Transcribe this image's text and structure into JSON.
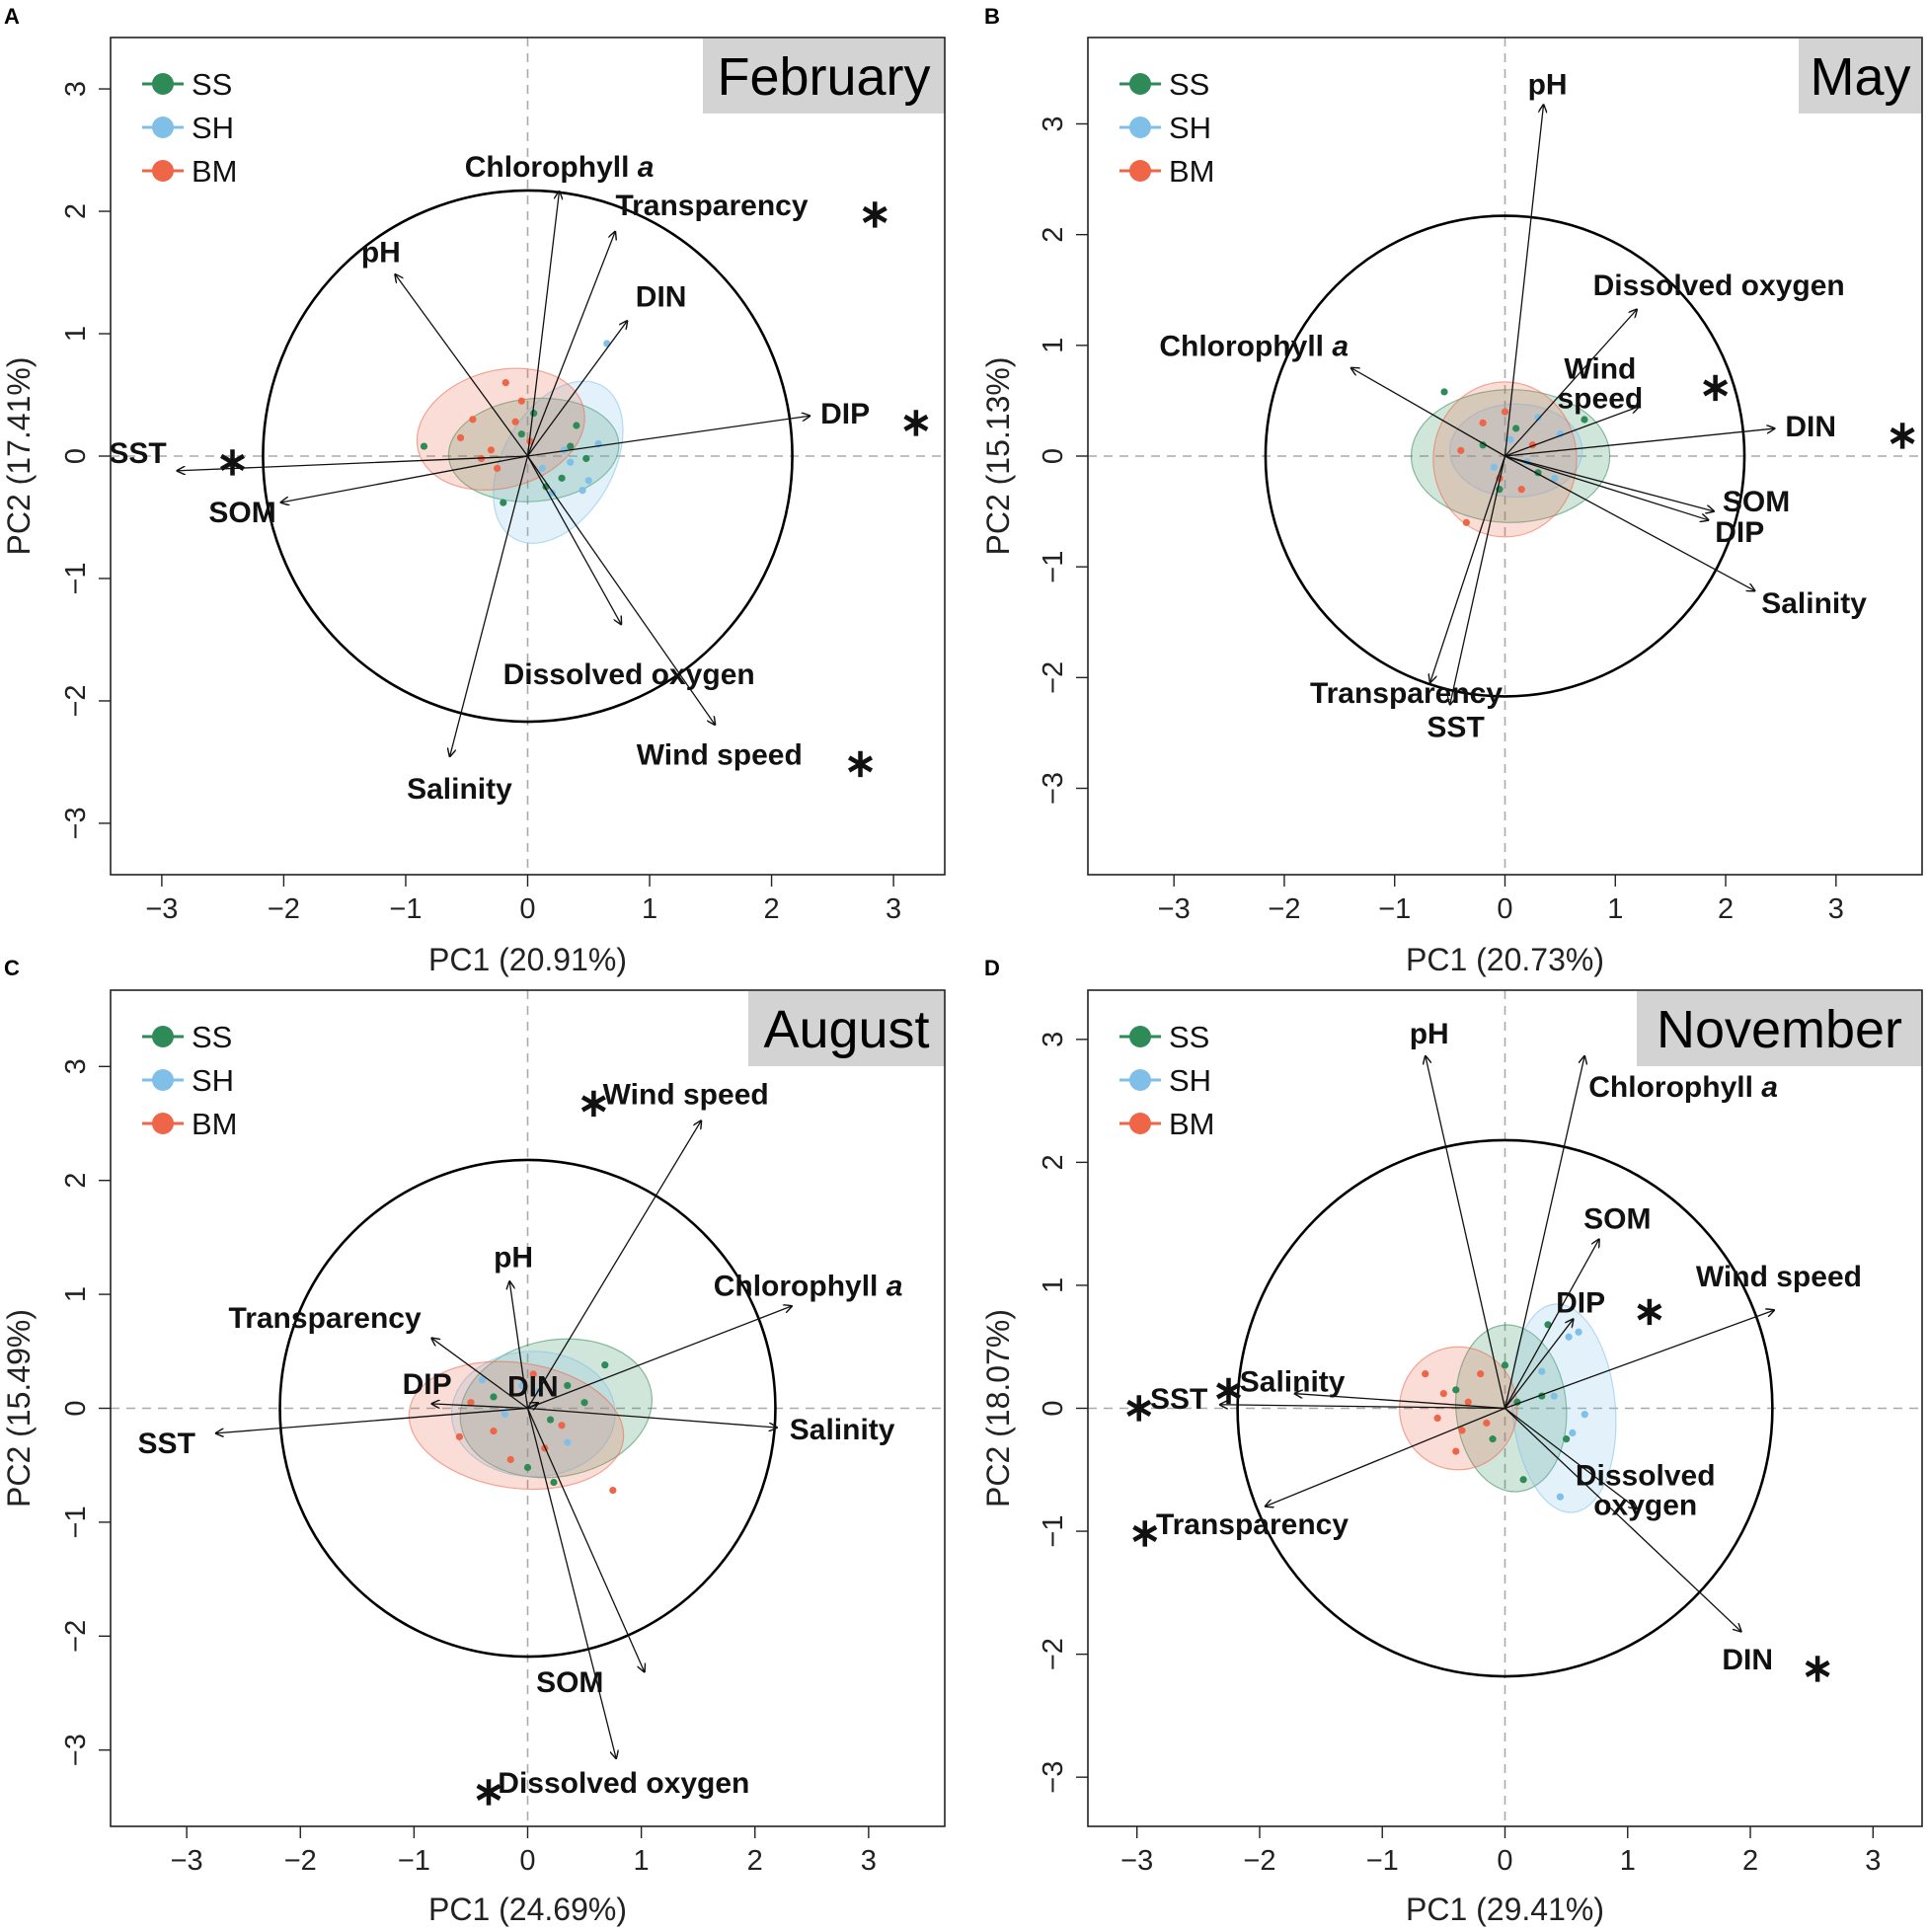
{
  "figure": {
    "legend_groups": [
      {
        "name": "SS",
        "color": "#2e8b57"
      },
      {
        "name": "SH",
        "color": "#7fbfe8"
      },
      {
        "name": "BM",
        "color": "#ef6548"
      }
    ],
    "ylabel_prefix": "PC2",
    "xlabel_prefix": "PC1"
  },
  "chart_data": [
    {
      "type": "scatter",
      "panel": "A",
      "title": "February",
      "xlabel": "PC1 (20.91%)",
      "ylabel": "PC2 (17.41%)",
      "xlim": [
        -3.42,
        3.42
      ],
      "ylim": [
        -3.42,
        3.42
      ],
      "xticks": [
        "−3",
        "−2",
        "−1",
        "0",
        "1",
        "2",
        "3"
      ],
      "yticks": [
        "−3",
        "−2",
        "−1",
        "0",
        "1",
        "2",
        "3"
      ],
      "legend": [
        "SS",
        "SH",
        "BM"
      ],
      "circle_radius": 2.17,
      "vectors": [
        {
          "label": "Chlorophyll a",
          "x": 0.26,
          "y": 2.17,
          "sig": false
        },
        {
          "label": "Transparency",
          "x": 0.72,
          "y": 1.84,
          "sig": true
        },
        {
          "label": "pH",
          "x": -1.09,
          "y": 1.49,
          "sig": false
        },
        {
          "label": "DIN",
          "x": 0.82,
          "y": 1.11,
          "sig": false
        },
        {
          "label": "DIP",
          "x": 2.32,
          "y": 0.33,
          "sig": true
        },
        {
          "label": "SST",
          "x": -2.88,
          "y": -0.12,
          "sig": true
        },
        {
          "label": "SOM",
          "x": -2.03,
          "y": -0.38,
          "sig": false
        },
        {
          "label": "Dissolved oxygen",
          "x": 0.77,
          "y": -1.38,
          "sig": false
        },
        {
          "label": "Wind speed",
          "x": 1.54,
          "y": -2.2,
          "sig": true
        },
        {
          "label": "Salinity",
          "x": -0.64,
          "y": -2.46,
          "sig": false
        }
      ],
      "ellipses": [
        {
          "group": "SS",
          "cx": 0.05,
          "cy": 0.05,
          "rx": 0.7,
          "ry": 0.42,
          "angle": 5
        },
        {
          "group": "SH",
          "cx": 0.25,
          "cy": -0.05,
          "rx": 0.45,
          "ry": 0.72,
          "angle": -30
        },
        {
          "group": "BM",
          "cx": -0.22,
          "cy": 0.22,
          "rx": 0.7,
          "ry": 0.48,
          "angle": 15
        }
      ],
      "points": [
        {
          "group": "SS",
          "x": -0.85,
          "y": 0.08
        },
        {
          "group": "SS",
          "x": 0.35,
          "y": 0.08
        },
        {
          "group": "SS",
          "x": 0.15,
          "y": -0.25
        },
        {
          "group": "SS",
          "x": -0.2,
          "y": -0.38
        },
        {
          "group": "SS",
          "x": 0.48,
          "y": -0.02
        },
        {
          "group": "SS",
          "x": 0.05,
          "y": 0.35
        },
        {
          "group": "SS",
          "x": 0.28,
          "y": -0.18
        },
        {
          "group": "SS",
          "x": -0.05,
          "y": 0.18
        },
        {
          "group": "SS",
          "x": 0.4,
          "y": 0.25
        },
        {
          "group": "SH",
          "x": 0.65,
          "y": 0.92
        },
        {
          "group": "SH",
          "x": 0.3,
          "y": 0.05
        },
        {
          "group": "SH",
          "x": 0.5,
          "y": -0.2
        },
        {
          "group": "SH",
          "x": 0.2,
          "y": -0.3
        },
        {
          "group": "SH",
          "x": 0.35,
          "y": -0.05
        },
        {
          "group": "SH",
          "x": 0.58,
          "y": 0.1
        },
        {
          "group": "SH",
          "x": 0.12,
          "y": -0.1
        },
        {
          "group": "SH",
          "x": 0.45,
          "y": -0.28
        },
        {
          "group": "BM",
          "x": -0.18,
          "y": 0.6
        },
        {
          "group": "BM",
          "x": -0.45,
          "y": 0.3
        },
        {
          "group": "BM",
          "x": -0.3,
          "y": 0.05
        },
        {
          "group": "BM",
          "x": -0.1,
          "y": 0.28
        },
        {
          "group": "BM",
          "x": -0.55,
          "y": 0.15
        },
        {
          "group": "BM",
          "x": -0.05,
          "y": 0.45
        },
        {
          "group": "BM",
          "x": -0.25,
          "y": -0.1
        },
        {
          "group": "BM",
          "x": 0.02,
          "y": 0.12
        },
        {
          "group": "BM",
          "x": -0.38,
          "y": -0.02
        }
      ]
    },
    {
      "type": "scatter",
      "panel": "B",
      "title": "May",
      "xlabel": "PC1 (20.73%)",
      "ylabel": "PC2 (15.13%)",
      "xlim": [
        -3.78,
        3.78
      ],
      "ylim": [
        -3.78,
        3.78
      ],
      "xticks": [
        "−3",
        "−2",
        "−1",
        "0",
        "1",
        "2",
        "3"
      ],
      "yticks": [
        "−3",
        "−2",
        "−1",
        "0",
        "1",
        "2",
        "3"
      ],
      "legend": [
        "SS",
        "SH",
        "BM"
      ],
      "circle_radius": 2.17,
      "vectors": [
        {
          "label": "pH",
          "x": 0.35,
          "y": 3.18,
          "sig": false
        },
        {
          "label": "Dissolved oxygen",
          "x": 1.2,
          "y": 1.33,
          "sig": false
        },
        {
          "label": "Chlorophyll a",
          "x": -1.4,
          "y": 0.8,
          "sig": false
        },
        {
          "label": "Wind speed",
          "x": 1.22,
          "y": 0.45,
          "sig": true
        },
        {
          "label": "DIN",
          "x": 2.45,
          "y": 0.25,
          "sig": true
        },
        {
          "label": "SOM",
          "x": 1.9,
          "y": -0.5,
          "sig": false
        },
        {
          "label": "DIP",
          "x": 1.85,
          "y": -0.58,
          "sig": false
        },
        {
          "label": "Salinity",
          "x": 2.27,
          "y": -1.22,
          "sig": false
        },
        {
          "label": "Transparency",
          "x": -0.68,
          "y": -2.05,
          "sig": false
        },
        {
          "label": "SST",
          "x": -0.5,
          "y": -2.25,
          "sig": false
        }
      ],
      "ellipses": [
        {
          "group": "SS",
          "cx": 0.05,
          "cy": 0.0,
          "rx": 0.9,
          "ry": 0.6,
          "angle": 0
        },
        {
          "group": "SH",
          "cx": 0.1,
          "cy": 0.05,
          "rx": 0.6,
          "ry": 0.42,
          "angle": 0
        },
        {
          "group": "BM",
          "cx": 0.0,
          "cy": -0.03,
          "rx": 0.65,
          "ry": 0.7,
          "angle": 0
        }
      ],
      "points": [
        {
          "group": "SS",
          "x": -0.55,
          "y": 0.58
        },
        {
          "group": "SS",
          "x": 0.72,
          "y": 0.33
        },
        {
          "group": "SS",
          "x": -0.2,
          "y": 0.1
        },
        {
          "group": "SS",
          "x": 0.3,
          "y": -0.15
        },
        {
          "group": "SS",
          "x": -0.05,
          "y": -0.3
        },
        {
          "group": "SS",
          "x": 0.1,
          "y": 0.25
        },
        {
          "group": "SH",
          "x": 0.5,
          "y": 0.2
        },
        {
          "group": "SH",
          "x": 0.3,
          "y": 0.35
        },
        {
          "group": "SH",
          "x": -0.1,
          "y": -0.1
        },
        {
          "group": "SH",
          "x": 0.2,
          "y": -0.05
        },
        {
          "group": "SH",
          "x": 0.45,
          "y": -0.2
        },
        {
          "group": "SH",
          "x": 0.05,
          "y": 0.15
        },
        {
          "group": "BM",
          "x": -0.35,
          "y": -0.6
        },
        {
          "group": "BM",
          "x": -0.2,
          "y": 0.3
        },
        {
          "group": "BM",
          "x": 0.15,
          "y": -0.3
        },
        {
          "group": "BM",
          "x": -0.4,
          "y": 0.05
        },
        {
          "group": "BM",
          "x": 0.25,
          "y": 0.1
        },
        {
          "group": "BM",
          "x": -0.05,
          "y": -0.2
        },
        {
          "group": "BM",
          "x": 0.0,
          "y": 0.4
        }
      ]
    },
    {
      "type": "scatter",
      "panel": "C",
      "title": "August",
      "xlabel": "PC1 (24.69%)",
      "ylabel": "PC2 (15.49%)",
      "xlim": [
        -3.67,
        3.67
      ],
      "ylim": [
        -3.67,
        3.67
      ],
      "xticks": [
        "−3",
        "−2",
        "−1",
        "0",
        "1",
        "2",
        "3"
      ],
      "yticks": [
        "−3",
        "−2",
        "−1",
        "0",
        "1",
        "2",
        "3"
      ],
      "legend": [
        "SS",
        "SH",
        "BM"
      ],
      "circle_radius": 2.18,
      "vectors": [
        {
          "label": "Wind speed",
          "x": 1.53,
          "y": 2.53,
          "sig": true
        },
        {
          "label": "pH",
          "x": -0.16,
          "y": 1.12,
          "sig": false
        },
        {
          "label": "Chlorophyll a",
          "x": 2.33,
          "y": 0.9,
          "sig": false
        },
        {
          "label": "Transparency",
          "x": -0.85,
          "y": 0.62,
          "sig": false
        },
        {
          "label": "DIP",
          "x": -0.85,
          "y": 0.04,
          "sig": false
        },
        {
          "label": "DIN",
          "x": 0.1,
          "y": 0.05,
          "sig": false
        },
        {
          "label": "SST",
          "x": -2.75,
          "y": -0.22,
          "sig": false
        },
        {
          "label": "Salinity",
          "x": 2.2,
          "y": -0.17,
          "sig": false
        },
        {
          "label": "SOM",
          "x": 1.03,
          "y": -2.32,
          "sig": false
        },
        {
          "label": "Dissolved oxygen",
          "x": 0.78,
          "y": -3.08,
          "sig": true
        }
      ],
      "ellipses": [
        {
          "group": "SS",
          "cx": 0.25,
          "cy": 0.0,
          "rx": 0.85,
          "ry": 0.6,
          "angle": 10
        },
        {
          "group": "SH",
          "cx": 0.05,
          "cy": -0.05,
          "rx": 0.72,
          "ry": 0.55,
          "angle": 0
        },
        {
          "group": "BM",
          "cx": -0.1,
          "cy": -0.15,
          "rx": 0.95,
          "ry": 0.55,
          "angle": -8
        }
      ],
      "points": [
        {
          "group": "SS",
          "x": 0.68,
          "y": 0.38
        },
        {
          "group": "SS",
          "x": 0.5,
          "y": 0.05
        },
        {
          "group": "SS",
          "x": 0.0,
          "y": -0.52
        },
        {
          "group": "SS",
          "x": 0.2,
          "y": -0.1
        },
        {
          "group": "SS",
          "x": -0.3,
          "y": 0.1
        },
        {
          "group": "SS",
          "x": 0.35,
          "y": 0.2
        },
        {
          "group": "SS",
          "x": 0.23,
          "y": -0.65
        },
        {
          "group": "SH",
          "x": -0.4,
          "y": 0.25
        },
        {
          "group": "SH",
          "x": 0.1,
          "y": 0.15
        },
        {
          "group": "SH",
          "x": -0.2,
          "y": -0.05
        },
        {
          "group": "SH",
          "x": 0.35,
          "y": -0.3
        },
        {
          "group": "SH",
          "x": -0.05,
          "y": 0.2
        },
        {
          "group": "BM",
          "x": 0.75,
          "y": -0.72
        },
        {
          "group": "BM",
          "x": -0.3,
          "y": -0.2
        },
        {
          "group": "BM",
          "x": -0.5,
          "y": 0.05
        },
        {
          "group": "BM",
          "x": 0.15,
          "y": -0.35
        },
        {
          "group": "BM",
          "x": -0.15,
          "y": -0.45
        },
        {
          "group": "BM",
          "x": 0.3,
          "y": -0.15
        },
        {
          "group": "BM",
          "x": -0.6,
          "y": -0.25
        },
        {
          "group": "BM",
          "x": 0.05,
          "y": 0.3
        }
      ]
    },
    {
      "type": "scatter",
      "panel": "D",
      "title": "November",
      "xlabel": "PC1 (29.41%)",
      "ylabel": "PC2 (18.07%)",
      "xlim": [
        -3.4,
        3.4
      ],
      "ylim": [
        -3.4,
        3.4
      ],
      "xticks": [
        "−3",
        "−2",
        "−1",
        "0",
        "1",
        "2",
        "3"
      ],
      "yticks": [
        "−3",
        "−2",
        "−1",
        "0",
        "1",
        "2",
        "3"
      ],
      "legend": [
        "SS",
        "SH",
        "BM"
      ],
      "circle_radius": 2.18,
      "vectors": [
        {
          "label": "pH",
          "x": -0.65,
          "y": 2.87,
          "sig": false
        },
        {
          "label": "Chlorophyll a",
          "x": 0.65,
          "y": 2.87,
          "sig": false
        },
        {
          "label": "SOM",
          "x": 0.77,
          "y": 1.38,
          "sig": false
        },
        {
          "label": "DIP",
          "x": 0.56,
          "y": 0.73,
          "sig": true
        },
        {
          "label": "Wind speed",
          "x": 2.2,
          "y": 0.8,
          "sig": true
        },
        {
          "label": "Salinity",
          "x": -1.72,
          "y": 0.12,
          "sig": true
        },
        {
          "label": "SST",
          "x": -2.33,
          "y": 0.03,
          "sig": true
        },
        {
          "label": "Transparency",
          "x": -1.96,
          "y": -0.8,
          "sig": true
        },
        {
          "label": "Dissolved oxygen",
          "x": 1.08,
          "y": -0.82,
          "sig": false
        },
        {
          "label": "DIN",
          "x": 1.93,
          "y": -1.82,
          "sig": true
        }
      ],
      "ellipses": [
        {
          "group": "SS",
          "cx": 0.05,
          "cy": 0.0,
          "rx": 0.45,
          "ry": 0.68,
          "angle": 5
        },
        {
          "group": "SH",
          "cx": 0.48,
          "cy": 0.0,
          "rx": 0.42,
          "ry": 0.85,
          "angle": 5
        },
        {
          "group": "BM",
          "cx": -0.38,
          "cy": 0.0,
          "rx": 0.48,
          "ry": 0.5,
          "angle": 0
        }
      ],
      "points": [
        {
          "group": "SS",
          "x": 0.35,
          "y": 0.68
        },
        {
          "group": "SS",
          "x": 0.0,
          "y": 0.35
        },
        {
          "group": "SS",
          "x": 0.15,
          "y": -0.58
        },
        {
          "group": "SS",
          "x": -0.4,
          "y": 0.15
        },
        {
          "group": "SS",
          "x": 0.5,
          "y": -0.25
        },
        {
          "group": "SS",
          "x": 0.1,
          "y": 0.05
        },
        {
          "group": "SS",
          "x": -0.1,
          "y": -0.25
        },
        {
          "group": "SS",
          "x": 0.3,
          "y": 0.1
        },
        {
          "group": "SH",
          "x": 0.6,
          "y": 0.62
        },
        {
          "group": "SH",
          "x": 0.52,
          "y": 0.58
        },
        {
          "group": "SH",
          "x": 0.45,
          "y": -0.72
        },
        {
          "group": "SH",
          "x": 0.3,
          "y": 0.3
        },
        {
          "group": "SH",
          "x": 0.55,
          "y": -0.2
        },
        {
          "group": "SH",
          "x": 0.4,
          "y": 0.1
        },
        {
          "group": "SH",
          "x": 0.65,
          "y": -0.05
        },
        {
          "group": "BM",
          "x": -0.65,
          "y": 0.28
        },
        {
          "group": "BM",
          "x": -0.55,
          "y": -0.08
        },
        {
          "group": "BM",
          "x": -0.4,
          "y": -0.35
        },
        {
          "group": "BM",
          "x": -0.3,
          "y": 0.05
        },
        {
          "group": "BM",
          "x": -0.2,
          "y": 0.28
        },
        {
          "group": "BM",
          "x": -0.5,
          "y": 0.12
        },
        {
          "group": "BM",
          "x": -0.15,
          "y": -0.12
        },
        {
          "group": "BM",
          "x": -0.35,
          "y": -0.18
        }
      ]
    }
  ]
}
